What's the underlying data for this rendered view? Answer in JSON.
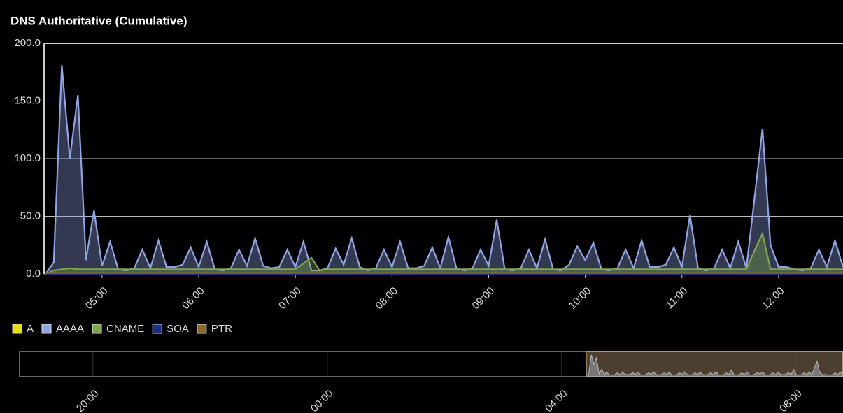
{
  "chart_data": {
    "type": "area",
    "title": "DNS Authoritative (Cumulative)",
    "x": [
      "04:25",
      "04:30",
      "04:35",
      "04:40",
      "04:45",
      "04:50",
      "04:55",
      "05:00",
      "05:05",
      "05:10",
      "05:15",
      "05:20",
      "05:25",
      "05:30",
      "05:35",
      "05:40",
      "05:45",
      "05:50",
      "05:55",
      "06:00",
      "06:05",
      "06:10",
      "06:15",
      "06:20",
      "06:25",
      "06:30",
      "06:35",
      "06:40",
      "06:45",
      "06:50",
      "06:55",
      "07:00",
      "07:05",
      "07:10",
      "07:15",
      "07:20",
      "07:25",
      "07:30",
      "07:35",
      "07:40",
      "07:45",
      "07:50",
      "07:55",
      "08:00",
      "08:05",
      "08:10",
      "08:15",
      "08:20",
      "08:25",
      "08:30",
      "08:35",
      "08:40",
      "08:45",
      "08:50",
      "08:55",
      "09:00",
      "09:05",
      "09:10",
      "09:15",
      "09:20",
      "09:25",
      "09:30",
      "09:35",
      "09:40",
      "09:45",
      "09:50",
      "09:55",
      "10:00",
      "10:05",
      "10:10",
      "10:15",
      "10:20",
      "10:25",
      "10:30",
      "10:35",
      "10:40",
      "10:45",
      "10:50",
      "10:55",
      "11:00",
      "11:05",
      "11:10",
      "11:15",
      "11:20",
      "11:25",
      "11:30",
      "11:35",
      "11:40",
      "11:45",
      "11:50",
      "11:55",
      "12:00",
      "12:05",
      "12:10",
      "12:15",
      "12:20",
      "12:25",
      "12:30",
      "12:35",
      "12:40"
    ],
    "series": [
      {
        "name": "A",
        "color": "#e8e000",
        "values": [
          0,
          0,
          0,
          0,
          0,
          0,
          0,
          0,
          0,
          0,
          0,
          0,
          0,
          0,
          0,
          0,
          0,
          0,
          0,
          0,
          0,
          0,
          0,
          0,
          0,
          0,
          0,
          0,
          0,
          0,
          0,
          0,
          0,
          0,
          0,
          0,
          0,
          0,
          0,
          0,
          0,
          0,
          0,
          0,
          0,
          0,
          0,
          0,
          0,
          0,
          0,
          0,
          0,
          0,
          0,
          0,
          0,
          0,
          0,
          0,
          0,
          0,
          0,
          0,
          0,
          0,
          0,
          0,
          0,
          0,
          0,
          0,
          0,
          0,
          0,
          0,
          0,
          0,
          0,
          0,
          0,
          0,
          0,
          0,
          0,
          0,
          0,
          0,
          0,
          0,
          0,
          0,
          0,
          0,
          0,
          0,
          0,
          0,
          0,
          0
        ]
      },
      {
        "name": "AAAA",
        "color": "#8fa4e6",
        "values": [
          0,
          10,
          181,
          100,
          155,
          12,
          55,
          7,
          28,
          4,
          3,
          5,
          21,
          5,
          29,
          6,
          6,
          8,
          23,
          6,
          28,
          4,
          3,
          5,
          21,
          7,
          31,
          7,
          5,
          6,
          21,
          6,
          28,
          3,
          3,
          5,
          22,
          8,
          31,
          6,
          3,
          5,
          21,
          6,
          28,
          5,
          5,
          7,
          23,
          5,
          32,
          5,
          3,
          5,
          21,
          7,
          47,
          4,
          3,
          5,
          21,
          5,
          30,
          4,
          3,
          8,
          24,
          12,
          27,
          4,
          3,
          5,
          21,
          5,
          29,
          6,
          6,
          8,
          23,
          6,
          51,
          5,
          3,
          5,
          21,
          5,
          28,
          5,
          65,
          126,
          25,
          6,
          6,
          4,
          3,
          5,
          21,
          6,
          29,
          6
        ]
      },
      {
        "name": "CNAME",
        "color": "#7fa84a",
        "values": [
          0,
          3,
          4,
          5,
          4,
          4,
          4,
          4,
          4,
          4,
          4,
          4,
          4,
          4,
          4,
          4,
          4,
          4,
          4,
          4,
          4,
          4,
          4,
          4,
          4,
          4,
          4,
          4,
          4,
          4,
          4,
          4,
          9,
          14,
          3,
          4,
          4,
          4,
          4,
          4,
          4,
          4,
          4,
          4,
          4,
          4,
          4,
          4,
          4,
          4,
          4,
          4,
          4,
          4,
          4,
          4,
          4,
          4,
          4,
          4,
          4,
          4,
          4,
          4,
          4,
          4,
          4,
          4,
          4,
          4,
          4,
          4,
          4,
          4,
          4,
          4,
          4,
          4,
          4,
          4,
          4,
          4,
          4,
          4,
          4,
          4,
          4,
          4,
          20,
          35,
          4,
          4,
          4,
          4,
          4,
          4,
          4,
          4,
          4,
          4
        ]
      },
      {
        "name": "SOA",
        "color": "#1a2f8a",
        "values": [
          0,
          0,
          0,
          0,
          0,
          0,
          0,
          0,
          0,
          0,
          0,
          0,
          0,
          0,
          0,
          0,
          0,
          0,
          0,
          0,
          0,
          0,
          0,
          0,
          0,
          0,
          0,
          0,
          0,
          0,
          0,
          0,
          0,
          0,
          0,
          0,
          0,
          0,
          0,
          0,
          0,
          0,
          0,
          0,
          0,
          0,
          0,
          0,
          0,
          0,
          0,
          0,
          0,
          0,
          0,
          0,
          0,
          0,
          0,
          0,
          0,
          0,
          0,
          0,
          0,
          0,
          0,
          0,
          0,
          0,
          0,
          0,
          0,
          0,
          0,
          0,
          0,
          0,
          0,
          0,
          0,
          0,
          0,
          0,
          0,
          0,
          0,
          0,
          0,
          0,
          0,
          0,
          0,
          0,
          0,
          0,
          0,
          0,
          0,
          0
        ]
      },
      {
        "name": "PTR",
        "color": "#8a6a2a",
        "values": [
          1,
          1,
          1,
          1,
          1,
          1,
          1,
          1,
          1,
          1,
          1,
          1,
          1,
          1,
          1,
          1,
          1,
          1,
          1,
          1,
          1,
          1,
          1,
          1,
          1,
          1,
          1,
          1,
          1,
          1,
          1,
          1,
          1,
          1,
          1,
          1,
          1,
          1,
          1,
          1,
          1,
          1,
          1,
          1,
          1,
          1,
          1,
          1,
          1,
          1,
          1,
          1,
          1,
          1,
          1,
          1,
          1,
          1,
          1,
          1,
          1,
          1,
          1,
          1,
          1,
          1,
          1,
          1,
          1,
          1,
          1,
          1,
          1,
          1,
          1,
          1,
          1,
          1,
          1,
          1,
          1,
          1,
          1,
          1,
          1,
          1,
          1,
          1,
          1,
          1,
          1,
          1,
          1,
          1,
          1,
          1,
          1,
          1,
          1,
          1
        ]
      }
    ],
    "xlim": [
      "04:24",
      "12:40"
    ],
    "xticks": [
      "05:00",
      "06:00",
      "07:00",
      "08:00",
      "09:00",
      "10:00",
      "11:00",
      "12:00"
    ],
    "ylim": [
      0,
      200
    ],
    "yticks": [
      {
        "value": 0,
        "label": "0.0"
      },
      {
        "value": 50,
        "label": "50.0"
      },
      {
        "value": 100,
        "label": "100.0"
      },
      {
        "value": 150,
        "label": "150.0"
      },
      {
        "value": 200,
        "label": "200.0"
      }
    ],
    "grid": true,
    "legend": "bottom-left",
    "navigator": {
      "xlim": [
        "18:45",
        "08:48"
      ],
      "xticks": [
        "20:00",
        "00:00",
        "04:00",
        "08:00"
      ],
      "selection": [
        "04:25",
        "08:48"
      ]
    }
  }
}
